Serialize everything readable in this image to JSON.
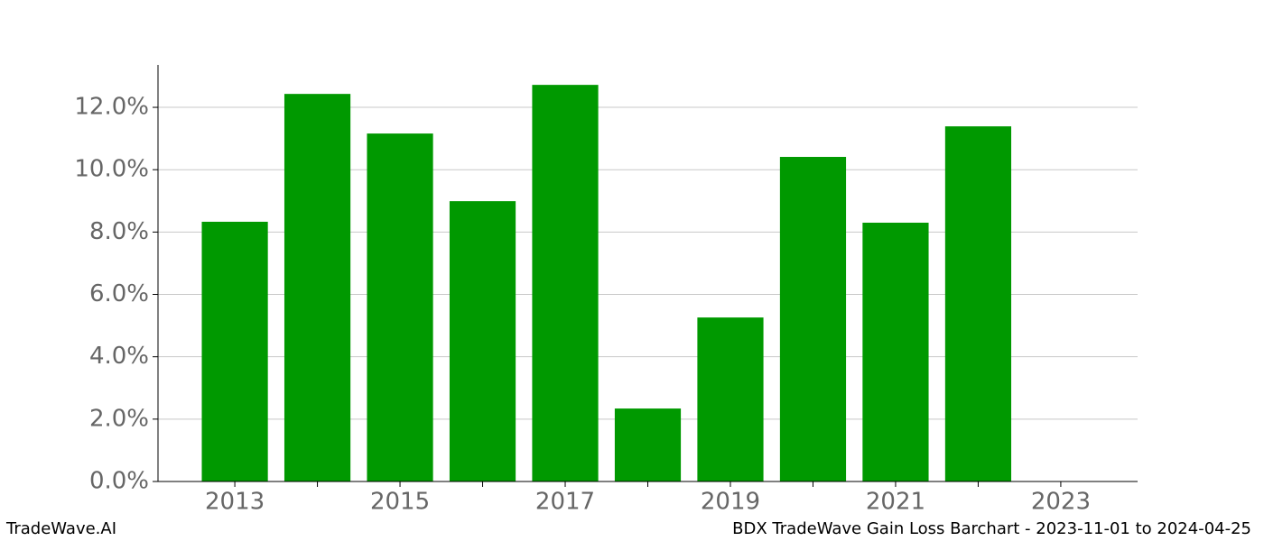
{
  "chart_data": {
    "type": "bar",
    "x": [
      2013,
      2014,
      2015,
      2016,
      2017,
      2018,
      2019,
      2020,
      2021,
      2022
    ],
    "values": [
      8.33,
      12.43,
      11.16,
      8.99,
      12.72,
      2.34,
      5.26,
      10.41,
      8.3,
      11.39
    ],
    "color": "#009900",
    "xlim": [
      2012.07,
      2023.93
    ],
    "xticks": [
      2013,
      2015,
      2017,
      2019,
      2021,
      2023
    ],
    "xminorticks": [
      2014,
      2016,
      2018,
      2020,
      2022
    ],
    "ylim": [
      0,
      13.36
    ],
    "yticks": [
      {
        "value": 0,
        "label": "0.0%"
      },
      {
        "value": 2,
        "label": "2.0%"
      },
      {
        "value": 4,
        "label": "4.0%"
      },
      {
        "value": 6,
        "label": "6.0%"
      },
      {
        "value": 8,
        "label": "8.0%"
      },
      {
        "value": 10,
        "label": "10.0%"
      },
      {
        "value": 12,
        "label": "12.0%"
      }
    ],
    "grid": true,
    "footer_left": "TradeWave.AI",
    "footer_right": "BDX TradeWave Gain Loss Barchart - 2023-11-01 to 2024-04-25"
  }
}
